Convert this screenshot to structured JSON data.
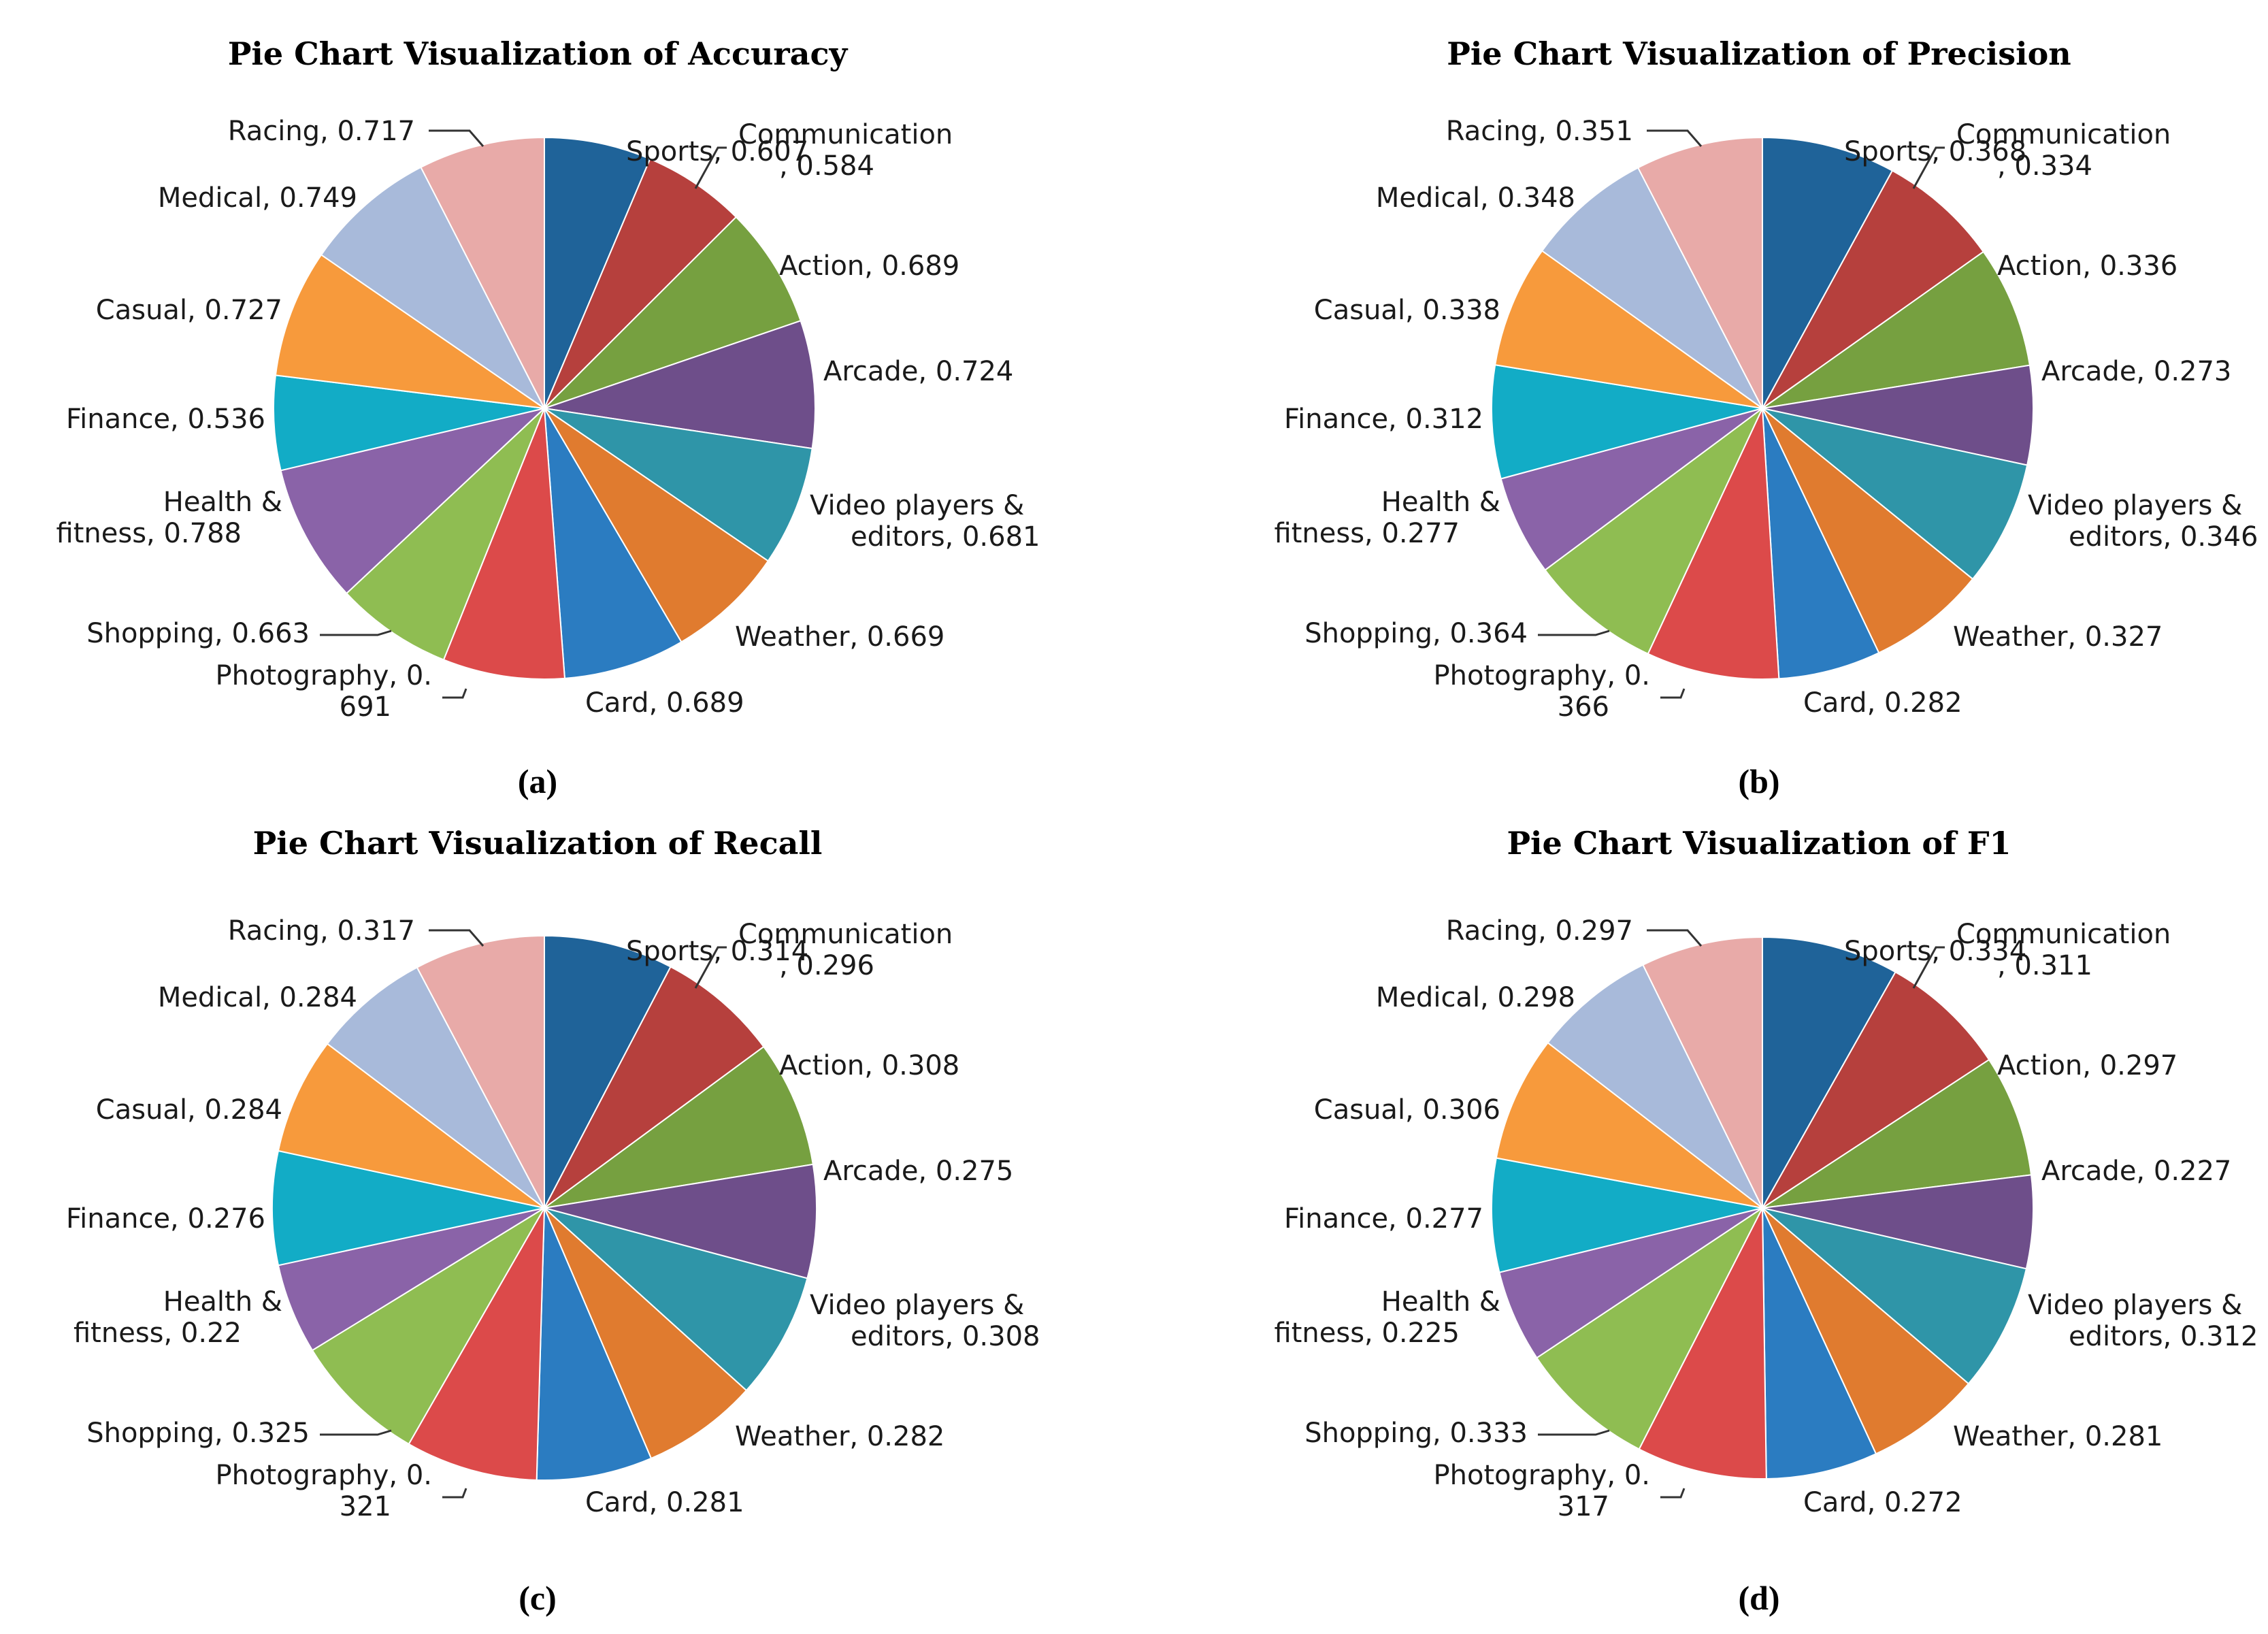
{
  "chart_data": [
    {
      "type": "pie",
      "title": "Pie Chart Visualization of Accuracy",
      "caption": "(a)",
      "slices": [
        {
          "name": "Sports",
          "value": 0.607,
          "label_lines": [
            "Sports, 0.607"
          ]
        },
        {
          "name": "Communication",
          "value": 0.584,
          "label_lines": [
            "Communication",
            ", 0.584"
          ]
        },
        {
          "name": "Action",
          "value": 0.689,
          "label_lines": [
            "Action, 0.689"
          ]
        },
        {
          "name": "Arcade",
          "value": 0.724,
          "label_lines": [
            "Arcade, 0.724"
          ]
        },
        {
          "name": "Video players & editors",
          "value": 0.681,
          "label_lines": [
            "Video players &",
            "editors, 0.681"
          ]
        },
        {
          "name": "Weather",
          "value": 0.669,
          "label_lines": [
            "Weather, 0.669"
          ]
        },
        {
          "name": "Card",
          "value": 0.689,
          "label_lines": [
            "Card, 0.689"
          ]
        },
        {
          "name": "Photography",
          "value": 0.691,
          "label_lines": [
            "Photography, 0.",
            "691"
          ]
        },
        {
          "name": "Shopping",
          "value": 0.663,
          "label_lines": [
            "Shopping, 0.663"
          ]
        },
        {
          "name": "Health & fitness",
          "value": 0.788,
          "label_lines": [
            "Health &",
            "fitness, 0.788"
          ]
        },
        {
          "name": "Finance",
          "value": 0.536,
          "label_lines": [
            "Finance, 0.536"
          ]
        },
        {
          "name": "Casual",
          "value": 0.727,
          "label_lines": [
            "Casual, 0.727"
          ]
        },
        {
          "name": "Medical",
          "value": 0.749,
          "label_lines": [
            "Medical, 0.749"
          ]
        },
        {
          "name": "Racing",
          "value": 0.717,
          "label_lines": [
            "Racing, 0.717"
          ]
        }
      ]
    },
    {
      "type": "pie",
      "title": "Pie Chart Visualization of Precision",
      "caption": "(b)",
      "slices": [
        {
          "name": "Sports",
          "value": 0.368,
          "label_lines": [
            "Sports, 0.368"
          ]
        },
        {
          "name": "Communication",
          "value": 0.334,
          "label_lines": [
            "Communication",
            ", 0.334"
          ]
        },
        {
          "name": "Action",
          "value": 0.336,
          "label_lines": [
            "Action, 0.336"
          ]
        },
        {
          "name": "Arcade",
          "value": 0.273,
          "label_lines": [
            "Arcade, 0.273"
          ]
        },
        {
          "name": "Video players & editors",
          "value": 0.346,
          "label_lines": [
            "Video players &",
            "editors, 0.346"
          ]
        },
        {
          "name": "Weather",
          "value": 0.327,
          "label_lines": [
            "Weather, 0.327"
          ]
        },
        {
          "name": "Card",
          "value": 0.282,
          "label_lines": [
            "Card, 0.282"
          ]
        },
        {
          "name": "Photography",
          "value": 0.366,
          "label_lines": [
            "Photography, 0.",
            "366"
          ]
        },
        {
          "name": "Shopping",
          "value": 0.364,
          "label_lines": [
            "Shopping, 0.364"
          ]
        },
        {
          "name": "Health & fitness",
          "value": 0.277,
          "label_lines": [
            "Health &",
            "fitness, 0.277"
          ]
        },
        {
          "name": "Finance",
          "value": 0.312,
          "label_lines": [
            "Finance, 0.312"
          ]
        },
        {
          "name": "Casual",
          "value": 0.338,
          "label_lines": [
            "Casual, 0.338"
          ]
        },
        {
          "name": "Medical",
          "value": 0.348,
          "label_lines": [
            "Medical, 0.348"
          ]
        },
        {
          "name": "Racing",
          "value": 0.351,
          "label_lines": [
            "Racing, 0.351"
          ]
        }
      ]
    },
    {
      "type": "pie",
      "title": "Pie Chart Visualization of Recall",
      "caption": "(c)",
      "slices": [
        {
          "name": "Sports",
          "value": 0.314,
          "label_lines": [
            "Sports, 0.314"
          ]
        },
        {
          "name": "Communication",
          "value": 0.296,
          "label_lines": [
            "Communication",
            ", 0.296"
          ]
        },
        {
          "name": "Action",
          "value": 0.308,
          "label_lines": [
            "Action, 0.308"
          ]
        },
        {
          "name": "Arcade",
          "value": 0.275,
          "label_lines": [
            "Arcade, 0.275"
          ]
        },
        {
          "name": "Video players & editors",
          "value": 0.308,
          "label_lines": [
            "Video players &",
            "editors, 0.308"
          ]
        },
        {
          "name": "Weather",
          "value": 0.282,
          "label_lines": [
            "Weather, 0.282"
          ]
        },
        {
          "name": "Card",
          "value": 0.281,
          "label_lines": [
            "Card, 0.281"
          ]
        },
        {
          "name": "Photography",
          "value": 0.321,
          "label_lines": [
            "Photography, 0.",
            "321"
          ]
        },
        {
          "name": "Shopping",
          "value": 0.325,
          "label_lines": [
            "Shopping, 0.325"
          ]
        },
        {
          "name": "Health & fitness",
          "value": 0.22,
          "label_lines": [
            "Health &",
            "fitness, 0.22"
          ]
        },
        {
          "name": "Finance",
          "value": 0.276,
          "label_lines": [
            "Finance, 0.276"
          ]
        },
        {
          "name": "Casual",
          "value": 0.284,
          "label_lines": [
            "Casual, 0.284"
          ]
        },
        {
          "name": "Medical",
          "value": 0.284,
          "label_lines": [
            "Medical, 0.284"
          ]
        },
        {
          "name": "Racing",
          "value": 0.317,
          "label_lines": [
            "Racing, 0.317"
          ]
        }
      ]
    },
    {
      "type": "pie",
      "title": "Pie Chart Visualization of F1",
      "caption": "(d)",
      "slices": [
        {
          "name": "Sports",
          "value": 0.334,
          "label_lines": [
            "Sports, 0.334"
          ]
        },
        {
          "name": "Communication",
          "value": 0.311,
          "label_lines": [
            "Communication",
            ", 0.311"
          ]
        },
        {
          "name": "Action",
          "value": 0.297,
          "label_lines": [
            "Action, 0.297"
          ]
        },
        {
          "name": "Arcade",
          "value": 0.227,
          "label_lines": [
            "Arcade, 0.227"
          ]
        },
        {
          "name": "Video players & editors",
          "value": 0.312,
          "label_lines": [
            "Video players &",
            "editors, 0.312"
          ]
        },
        {
          "name": "Weather",
          "value": 0.281,
          "label_lines": [
            "Weather, 0.281"
          ]
        },
        {
          "name": "Card",
          "value": 0.272,
          "label_lines": [
            "Card, 0.272"
          ]
        },
        {
          "name": "Photography",
          "value": 0.317,
          "label_lines": [
            "Photography, 0.",
            "317"
          ]
        },
        {
          "name": "Shopping",
          "value": 0.333,
          "label_lines": [
            "Shopping, 0.333"
          ]
        },
        {
          "name": "Health & fitness",
          "value": 0.225,
          "label_lines": [
            "Health &",
            "fitness, 0.225"
          ]
        },
        {
          "name": "Finance",
          "value": 0.277,
          "label_lines": [
            "Finance, 0.277"
          ]
        },
        {
          "name": "Casual",
          "value": 0.306,
          "label_lines": [
            "Casual, 0.306"
          ]
        },
        {
          "name": "Medical",
          "value": 0.298,
          "label_lines": [
            "Medical, 0.298"
          ]
        },
        {
          "name": "Racing",
          "value": 0.297,
          "label_lines": [
            "Racing, 0.297"
          ]
        }
      ]
    }
  ],
  "colors": {
    "Sports": "#1f6399",
    "Communication": "#b6403d",
    "Action": "#76a040",
    "Arcade": "#6e4e8a",
    "Video players & editors": "#2f95a8",
    "Weather": "#e07b2f",
    "Card": "#2b7cc1",
    "Photography": "#dc4a4a",
    "Shopping": "#8fbd52",
    "Health & fitness": "#8a63a8",
    "Finance": "#12acc6",
    "Casual": "#f79a3c",
    "Medical": "#a8bada",
    "Racing": "#e8aaa8"
  }
}
